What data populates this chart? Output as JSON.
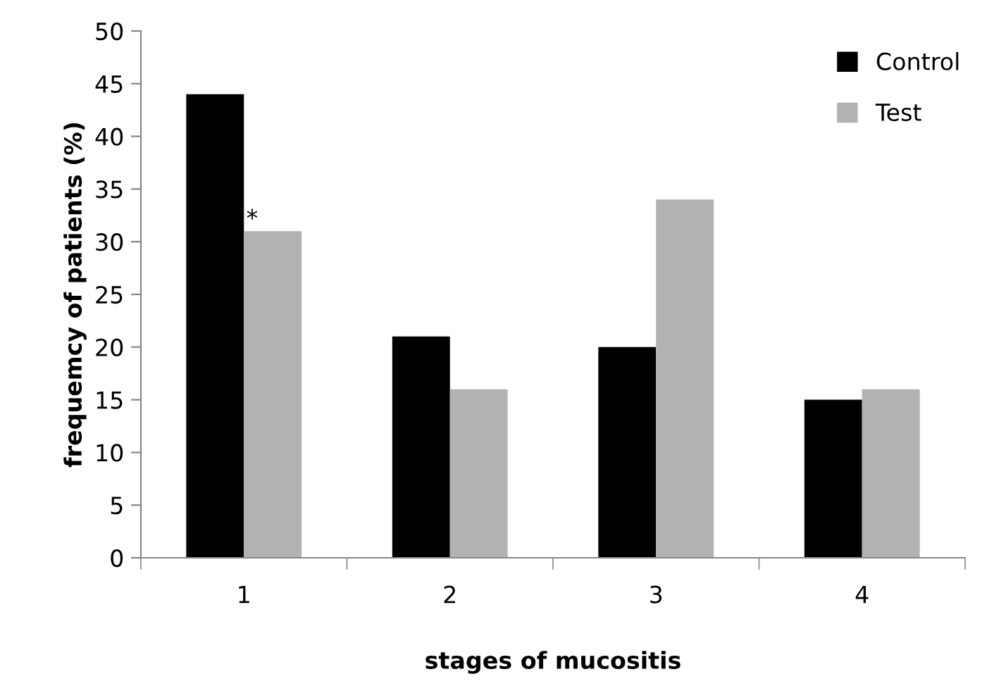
{
  "chart_data": {
    "type": "bar",
    "xlabel": "stages of mucositis",
    "ylabel": "frequemcy of patients (%)",
    "categories": [
      "1",
      "2",
      "3",
      "4"
    ],
    "series": [
      {
        "name": "Control",
        "color": "#000000",
        "values": [
          44,
          21,
          20,
          15
        ]
      },
      {
        "name": "Test",
        "color": "#b2b2b2",
        "values": [
          31,
          16,
          34,
          16
        ]
      }
    ],
    "ylim": [
      0,
      50
    ],
    "yticks": [
      0,
      5,
      10,
      15,
      20,
      25,
      30,
      35,
      40,
      45,
      50
    ],
    "grid": false,
    "legend": "top right",
    "annotations": [
      {
        "text": "*",
        "x": "1",
        "y": 31
      }
    ]
  }
}
